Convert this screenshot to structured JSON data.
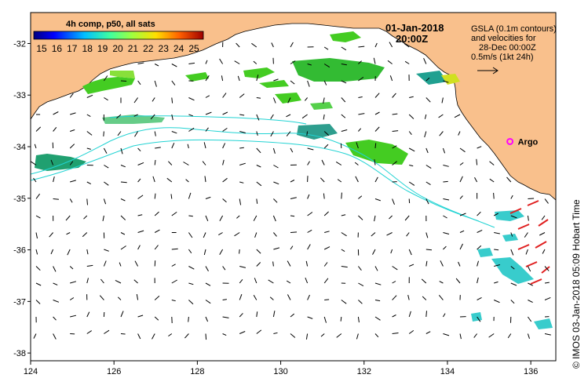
{
  "map": {
    "date": "01-Jan-2018",
    "time": "20:00Z",
    "composite_label": "4h comp, p50, all sats",
    "colorbar_ticks": [
      "15",
      "16",
      "17",
      "18",
      "19",
      "20",
      "21",
      "22",
      "23",
      "24",
      "25"
    ],
    "gsla_lines": [
      "GSLA (0.1m contours)",
      "and velocities for",
      "28-Dec 00:00Z",
      "0.5m/s (1kt 24h)"
    ],
    "argo_label": "Argo",
    "credit": "© IMOS 03-Jan-2018 05:09 Hobart Time",
    "x_ticks": [
      "124",
      "126",
      "128",
      "130",
      "132",
      "134",
      "136"
    ],
    "y_ticks": [
      "-32",
      "-33",
      "-34",
      "-35",
      "-36",
      "-37",
      "-38"
    ],
    "colors": {
      "land": "#f9c08c",
      "contour": "#22d3d3",
      "argo": "#ff00ff",
      "vector": "#000000"
    }
  },
  "chart_data": {
    "type": "map",
    "lon_range": [
      124,
      136.6
    ],
    "lat_range": [
      -38.15,
      -31.4
    ],
    "argo_float": {
      "lon": 135.5,
      "lat": -33.9
    }
  }
}
